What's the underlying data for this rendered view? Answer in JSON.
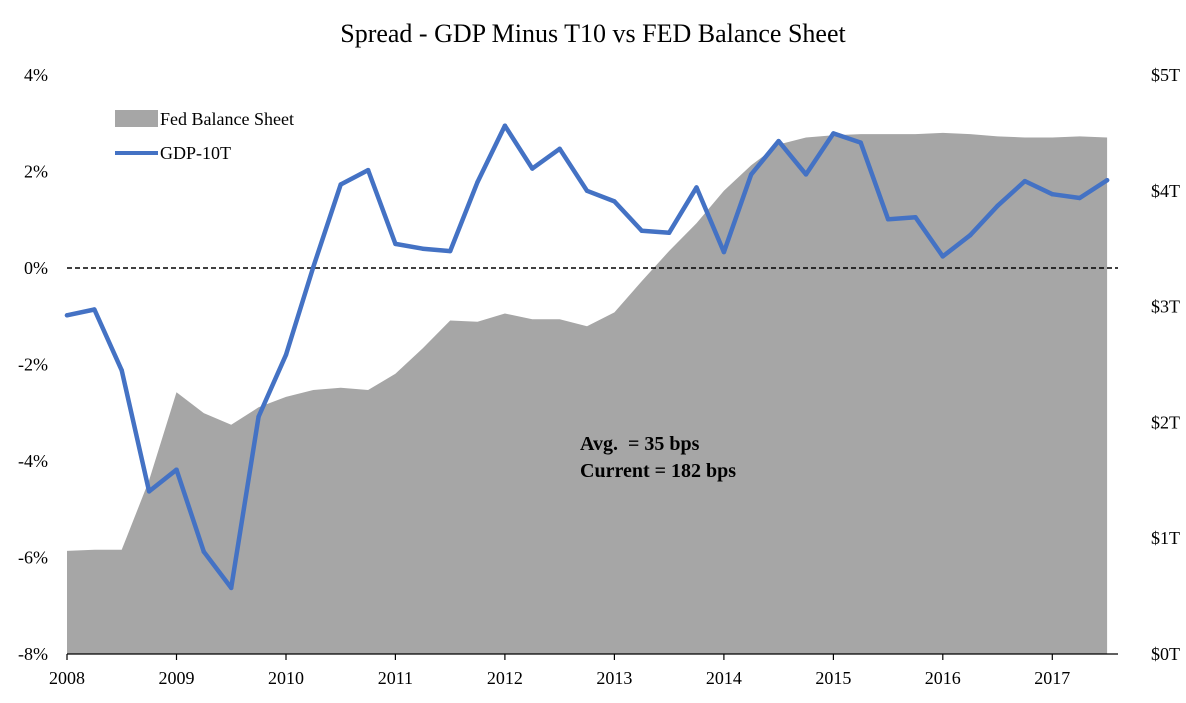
{
  "chart_data": {
    "type": "line",
    "title": "Spread - GDP Minus T10 vs FED Balance Sheet",
    "x_ticks": [
      "2008",
      "2009",
      "2010",
      "2011",
      "2012",
      "2013",
      "2014",
      "2015",
      "2016",
      "2017"
    ],
    "x_range": [
      2008,
      2017.6
    ],
    "y_left": {
      "range": [
        -8,
        4
      ],
      "ticks": [
        -8,
        -6,
        -4,
        -2,
        0,
        2,
        4
      ],
      "tick_labels": [
        "-8%",
        "-6%",
        "-4%",
        "-2%",
        "0%",
        "2%",
        "4%"
      ]
    },
    "y_right": {
      "range": [
        0,
        5
      ],
      "ticks": [
        0,
        1,
        2,
        3,
        4,
        5
      ],
      "tick_labels": [
        "$0T",
        "$1T",
        "$2T",
        "$3T",
        "$4T",
        "$5T"
      ]
    },
    "reference_line": {
      "y": 0,
      "style": "dashed"
    },
    "legend": {
      "position": "top-left"
    },
    "series": [
      {
        "name": "Fed Balance Sheet",
        "kind": "area",
        "axis": "right",
        "color": "#a6a6a6",
        "x": [
          2008.0,
          2008.25,
          2008.5,
          2008.75,
          2009.0,
          2009.25,
          2009.5,
          2009.75,
          2010.0,
          2010.25,
          2010.5,
          2010.75,
          2011.0,
          2011.25,
          2011.5,
          2011.75,
          2012.0,
          2012.25,
          2012.5,
          2012.75,
          2013.0,
          2013.25,
          2013.5,
          2013.75,
          2014.0,
          2014.25,
          2014.5,
          2014.75,
          2015.0,
          2015.25,
          2015.5,
          2015.75,
          2016.0,
          2016.25,
          2016.5,
          2016.75,
          2017.0,
          2017.25,
          2017.5
        ],
        "values": [
          0.89,
          0.9,
          0.9,
          1.5,
          2.26,
          2.08,
          1.98,
          2.13,
          2.22,
          2.28,
          2.3,
          2.28,
          2.42,
          2.64,
          2.88,
          2.87,
          2.94,
          2.89,
          2.89,
          2.83,
          2.95,
          3.22,
          3.48,
          3.72,
          4.0,
          4.22,
          4.4,
          4.46,
          4.48,
          4.49,
          4.49,
          4.49,
          4.5,
          4.49,
          4.47,
          4.46,
          4.46,
          4.47,
          4.46
        ]
      },
      {
        "name": "GDP-10T",
        "kind": "line",
        "axis": "left",
        "color": "#4472c4",
        "x": [
          2008.0,
          2008.25,
          2008.5,
          2008.75,
          2009.0,
          2009.25,
          2009.5,
          2009.75,
          2010.0,
          2010.25,
          2010.5,
          2010.75,
          2011.0,
          2011.25,
          2011.5,
          2011.75,
          2012.0,
          2012.25,
          2012.5,
          2012.75,
          2013.0,
          2013.25,
          2013.5,
          2013.75,
          2014.0,
          2014.25,
          2014.5,
          2014.75,
          2015.0,
          2015.25,
          2015.5,
          2015.75,
          2016.0,
          2016.25,
          2016.5,
          2016.75,
          2017.0,
          2017.25,
          2017.5
        ],
        "values": [
          -0.98,
          -0.86,
          -2.12,
          -4.63,
          -4.18,
          -5.88,
          -6.63,
          -3.08,
          -1.8,
          0.02,
          1.73,
          2.03,
          0.5,
          0.4,
          0.35,
          1.78,
          2.95,
          2.06,
          2.47,
          1.6,
          1.38,
          0.77,
          0.73,
          1.67,
          0.33,
          1.94,
          2.63,
          1.94,
          2.79,
          2.6,
          1.01,
          1.05,
          0.24,
          0.68,
          1.29,
          1.8,
          1.53,
          1.45,
          1.82
        ]
      }
    ],
    "annotations": [
      "Avg.  = 35 bps",
      "Current = 182 bps"
    ]
  }
}
